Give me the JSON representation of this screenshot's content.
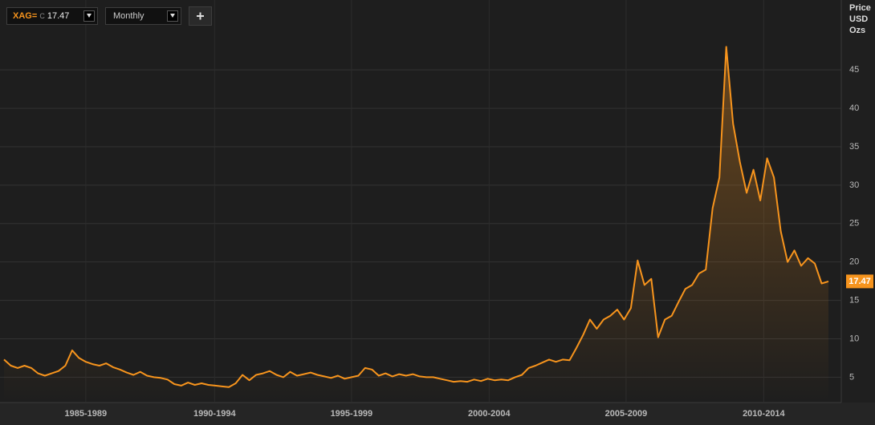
{
  "toolbar": {
    "instrument": "XAG=",
    "price_flag": "C",
    "interval": "Monthly"
  },
  "chart_data": {
    "type": "line",
    "y_label": "Price USD Ozs",
    "color": "#f7941d",
    "values": [
      7.3,
      6.5,
      6.2,
      6.5,
      6.2,
      5.5,
      5.2,
      5.5,
      5.8,
      6.5,
      8.5,
      7.5,
      7.0,
      6.7,
      6.5,
      6.8,
      6.3,
      6.0,
      5.6,
      5.3,
      5.7,
      5.2,
      5.0,
      4.9,
      4.7,
      4.1,
      3.9,
      4.3,
      4.0,
      4.2,
      4.0,
      3.9,
      3.8,
      3.7,
      4.2,
      5.3,
      4.6,
      5.3,
      5.5,
      5.8,
      5.3,
      5.0,
      5.7,
      5.2,
      5.4,
      5.6,
      5.3,
      5.1,
      4.9,
      5.2,
      4.8,
      5.0,
      5.2,
      6.2,
      6.0,
      5.2,
      5.5,
      5.1,
      5.4,
      5.2,
      5.4,
      5.1,
      5.0,
      5.0,
      4.8,
      4.6,
      4.4,
      4.5,
      4.4,
      4.7,
      4.5,
      4.8,
      4.6,
      4.7,
      4.6,
      5.0,
      5.3,
      6.2,
      6.5,
      6.9,
      7.3,
      7.0,
      7.3,
      7.2,
      8.8,
      10.5,
      12.5,
      11.3,
      12.5,
      13.0,
      13.8,
      12.5,
      14.0,
      20.2,
      17.0,
      17.8,
      10.2,
      12.5,
      13.0,
      14.8,
      16.5,
      17.0,
      18.5,
      19.0,
      27.0,
      31.0,
      48.0,
      38.0,
      33.0,
      29.0,
      32.0,
      28.0,
      33.5,
      31.0,
      24.0,
      20.0,
      21.5,
      19.5,
      20.5,
      19.8,
      17.2,
      17.47
    ],
    "xlim": [
      0,
      121
    ],
    "xticks": [
      {
        "value": 12.0,
        "label": "1985-1989"
      },
      {
        "value": 30.9,
        "label": "1990-1994"
      },
      {
        "value": 51.0,
        "label": "1995-1999"
      },
      {
        "value": 71.2,
        "label": "2000-2004"
      },
      {
        "value": 91.3,
        "label": "2005-2009"
      },
      {
        "value": 111.5,
        "label": "2010-2014"
      }
    ],
    "ylim": [
      1.7,
      54.1
    ],
    "yticks": [
      5,
      10,
      15,
      20,
      25,
      30,
      35,
      40,
      45
    ],
    "grid": true
  }
}
